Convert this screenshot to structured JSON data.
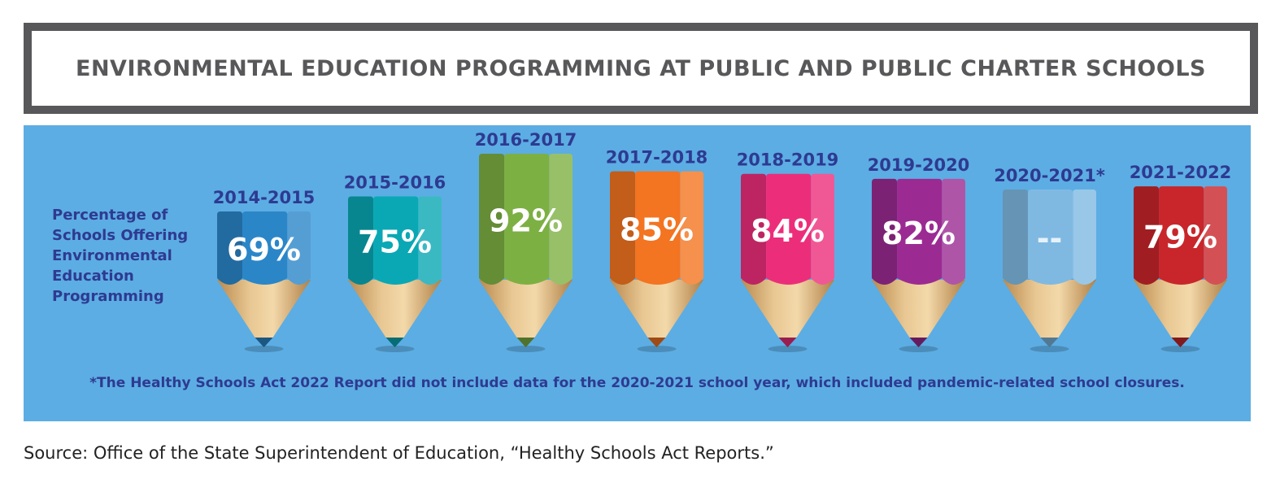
{
  "title": "ENVIRONMENTAL EDUCATION PROGRAMMING AT PUBLIC AND PUBLIC CHARTER SCHOOLS",
  "source": "Source: Office of the State Superintendent of Education, “Healthy Schools Act Reports.”",
  "chart_data": {
    "type": "bar",
    "title": "ENVIRONMENTAL EDUCATION PROGRAMMING AT PUBLIC AND PUBLIC CHARTER SCHOOLS",
    "ylabel": "Percentage of Schools Offering Environmental Education Programming",
    "categories": [
      "2014-2015",
      "2015-2016",
      "2016-2017",
      "2017-2018",
      "2018-2019",
      "2019-2020",
      "2020-2021*",
      "2021-2022"
    ],
    "values": [
      69,
      75,
      92,
      85,
      84,
      82,
      null,
      79
    ],
    "value_labels": [
      "69%",
      "75%",
      "92%",
      "85%",
      "84%",
      "82%",
      "--",
      "79%"
    ],
    "colors": [
      "#2b86c8",
      "#0aa8b4",
      "#7db043",
      "#f37421",
      "#ec2e7a",
      "#9b2b92",
      "#7fb9e2",
      "#c8262b"
    ],
    "ylim": [
      0,
      100
    ],
    "footnote": "*The Healthy Schools Act 2022 Report did not include data for the 2020-2021 school year, which included pandemic-related school closures."
  }
}
